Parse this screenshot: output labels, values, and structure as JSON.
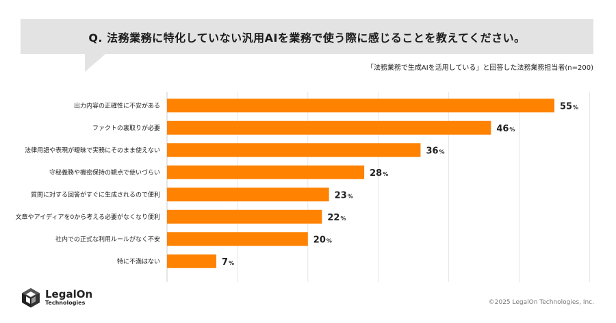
{
  "question": "Q. 法務業務に特化していない汎用AIを業務で使う際に感じることを教えてください。",
  "subtitle": "「法務業務で生成AIを活用している」と回答した法務業務担当者(n=200)",
  "colors": {
    "bar": "#ff8200",
    "question_bg": "#e3e3e3",
    "grid": "#e6e6e6"
  },
  "chart_data": {
    "type": "bar",
    "orientation": "horizontal",
    "categories": [
      "出力内容の正確性に不安がある",
      "ファクトの裏取りが必要",
      "法律用語や表現が曖昧で実務にそのまま使えない",
      "守秘義務や機密保持の観点で使いづらい",
      "質問に対する回答がすぐに生成されるので便利",
      "文章やアイディアを0から考える必要がなくなり便利",
      "社内での正式な利用ルールがなく不安",
      "特に不満はない"
    ],
    "values": [
      55,
      46,
      36,
      28,
      23,
      22,
      20,
      7
    ],
    "value_suffix": "%",
    "xlim": [
      0,
      60
    ],
    "grid": true
  },
  "logo": {
    "name": "LegalOn",
    "sub": "Technologies",
    "icon": "legalon-cube-icon"
  },
  "copyright": "©2025 LegalOn Technologies, Inc."
}
